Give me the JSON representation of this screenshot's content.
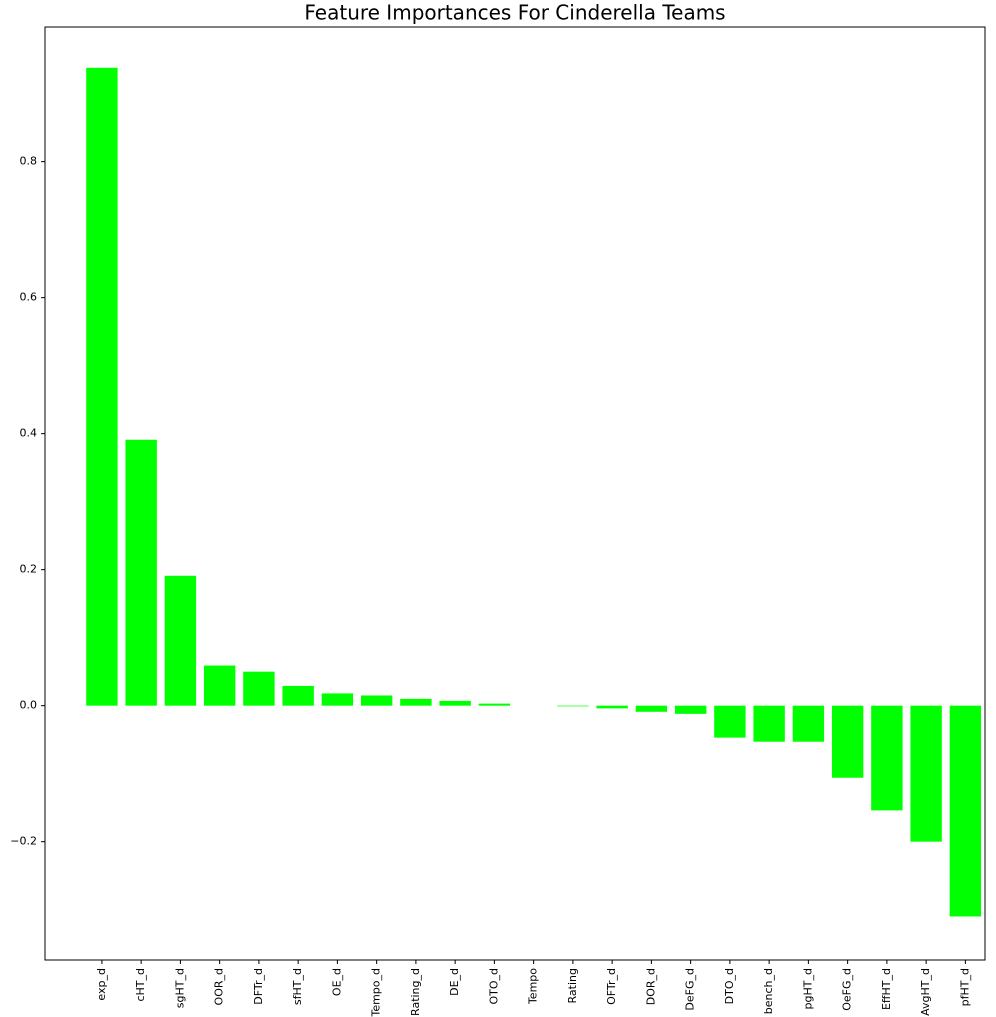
{
  "chart_data": {
    "type": "bar",
    "title": "Feature Importances For Cinderella Teams",
    "categories": [
      "exp_d",
      "cHT_d",
      "sgHT_d",
      "OOR_d",
      "DFTr_d",
      "sfHT_d",
      "OE_d",
      "Tempo_d",
      "Rating_d",
      "DE_d",
      "OTO_d",
      "Tempo",
      "Rating",
      "OFTr_d",
      "DOR_d",
      "DeFG_d",
      "DTO_d",
      "bench_d",
      "pgHT_d",
      "OeFG_d",
      "EffHT_d",
      "AvgHT_d",
      "pfHT_d"
    ],
    "values": [
      0.938,
      0.391,
      0.191,
      0.059,
      0.05,
      0.029,
      0.018,
      0.015,
      0.01,
      0.007,
      0.003,
      0,
      -0.001,
      -0.004,
      -0.009,
      -0.012,
      -0.047,
      -0.053,
      -0.053,
      -0.106,
      -0.154,
      -0.2,
      -0.31
    ],
    "color": "#00ff00",
    "ylim": [
      -0.374,
      0.998
    ],
    "yticks": [
      {
        "value": -0.2,
        "label": "−0.2"
      },
      {
        "value": 0,
        "label": "0.0"
      },
      0.2,
      0.4,
      0.6,
      0.8
    ],
    "grid": false
  }
}
